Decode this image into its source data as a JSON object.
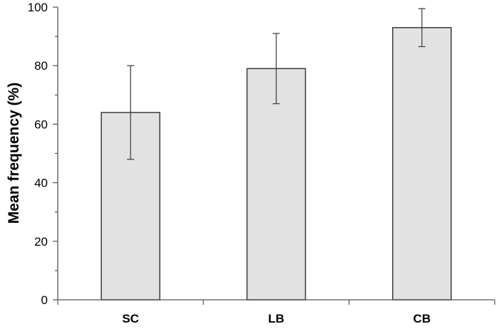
{
  "chart_data": {
    "type": "bar",
    "title": "",
    "xlabel": "",
    "ylabel": "Mean frequency (%)",
    "categories": [
      "SC",
      "LB",
      "CB"
    ],
    "values": [
      64,
      79,
      93
    ],
    "error_low": [
      48,
      67,
      86.5
    ],
    "error_high": [
      80,
      91,
      99.5
    ],
    "ylim": [
      0,
      100
    ],
    "yticks": [
      0,
      20,
      40,
      60,
      80,
      100
    ],
    "grid": false,
    "legend": "none",
    "colors": {
      "bar_fill": "#e2e2e2",
      "bar_stroke": "#3a3a3a",
      "axis": "#555555",
      "error": "#444444"
    }
  }
}
